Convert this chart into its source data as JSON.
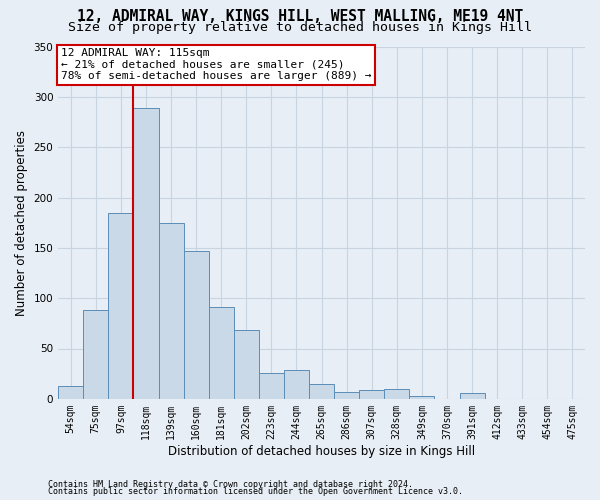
{
  "title1": "12, ADMIRAL WAY, KINGS HILL, WEST MALLING, ME19 4NT",
  "title2": "Size of property relative to detached houses in Kings Hill",
  "xlabel": "Distribution of detached houses by size in Kings Hill",
  "ylabel": "Number of detached properties",
  "categories": [
    "54sqm",
    "75sqm",
    "97sqm",
    "118sqm",
    "139sqm",
    "160sqm",
    "181sqm",
    "202sqm",
    "223sqm",
    "244sqm",
    "265sqm",
    "286sqm",
    "307sqm",
    "328sqm",
    "349sqm",
    "370sqm",
    "391sqm",
    "412sqm",
    "433sqm",
    "454sqm",
    "475sqm"
  ],
  "values": [
    13,
    88,
    185,
    289,
    175,
    147,
    91,
    68,
    26,
    29,
    15,
    7,
    9,
    10,
    3,
    0,
    6,
    0,
    0,
    0,
    0
  ],
  "bar_color": "#c9d9e8",
  "bar_edge_color": "#5b8db8",
  "grid_color": "#c8d4e0",
  "background_color": "#e8eef5",
  "vline_color": "#cc0000",
  "vline_x_index": 3,
  "annotation_text": "12 ADMIRAL WAY: 115sqm\n← 21% of detached houses are smaller (245)\n78% of semi-detached houses are larger (889) →",
  "annotation_box_color": "#ffffff",
  "annotation_box_edge": "#cc0000",
  "footer1": "Contains HM Land Registry data © Crown copyright and database right 2024.",
  "footer2": "Contains public sector information licensed under the Open Government Licence v3.0.",
  "ylim": [
    0,
    350
  ],
  "yticks": [
    0,
    50,
    100,
    150,
    200,
    250,
    300,
    350
  ],
  "title1_fontsize": 10.5,
  "title2_fontsize": 9.5,
  "tick_fontsize": 7,
  "ylabel_fontsize": 8.5,
  "xlabel_fontsize": 8.5,
  "annotation_fontsize": 8,
  "footer_fontsize": 6
}
